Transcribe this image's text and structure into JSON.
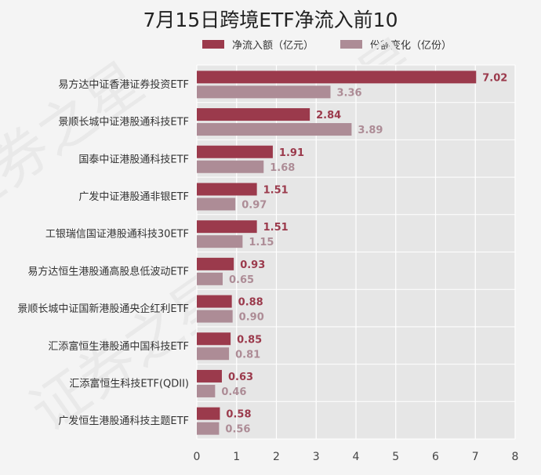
{
  "chart_data": {
    "type": "bar",
    "orientation": "horizontal",
    "title": "7月15日跨境ETF净流入前10",
    "categories": [
      "易方达中证香港证券投资ETF",
      "景顺长城中证港股通科技ETF",
      "国泰中证港股通科技ETF",
      "广发中证港股通非银ETF",
      "工银瑞信国证港股通科技30ETF",
      "易方达恒生港股通高股息低波动ETF",
      "景顺长城中证国新港股通央企红利ETF",
      "汇添富恒生港股通中国科技ETF",
      "汇添富恒生科技ETF(QDII)",
      "广发恒生港股通科技主题ETF"
    ],
    "series": [
      {
        "name": "净流入额（亿元）",
        "color": "#9b3a4c",
        "values": [
          7.02,
          2.84,
          1.91,
          1.51,
          1.51,
          0.93,
          0.88,
          0.85,
          0.63,
          0.58
        ],
        "labels": [
          "7.02",
          "2.84",
          "1.91",
          "1.51",
          "1.51",
          "0.93",
          "0.88",
          "0.85",
          "0.63",
          "0.58"
        ]
      },
      {
        "name": "份额变化（亿份）",
        "color": "#ad8c96",
        "values": [
          3.36,
          3.89,
          1.68,
          0.97,
          1.15,
          0.65,
          0.9,
          0.81,
          0.46,
          0.56
        ],
        "labels": [
          "3.36",
          "3.89",
          "1.68",
          "0.97",
          "1.15",
          "0.65",
          "0.90",
          "0.81",
          "0.46",
          "0.56"
        ]
      }
    ],
    "xlim": [
      0,
      8
    ],
    "xticks": [
      "0",
      "1",
      "2",
      "3",
      "4",
      "5",
      "6",
      "7",
      "8"
    ],
    "grid": true,
    "legend_position": "top"
  },
  "watermark": "证券之星"
}
